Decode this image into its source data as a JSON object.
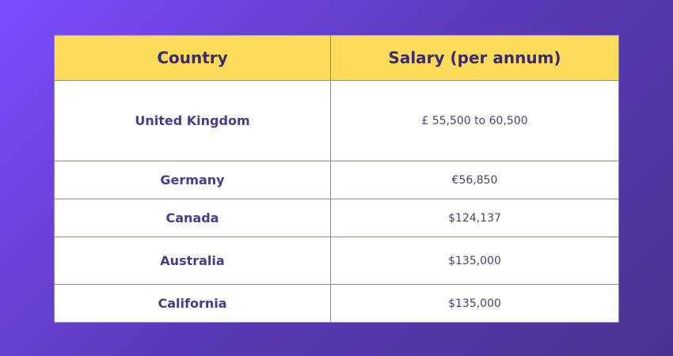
{
  "table": {
    "header": [
      "Country",
      "Salary (per annum)"
    ],
    "rows": [
      [
        "United Kingdom",
        "£ 55,500 to 60,500"
      ],
      [
        "Germany",
        "€56,850"
      ],
      [
        "Canada",
        "$124,137"
      ],
      [
        "Australia",
        "$135,000"
      ],
      [
        "California",
        "$135,000"
      ]
    ]
  }
}
